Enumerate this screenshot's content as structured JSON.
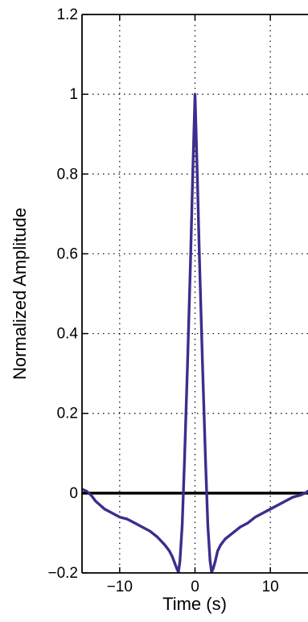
{
  "chart_data": {
    "type": "line",
    "title": "",
    "xlabel": "Time (s)",
    "ylabel": "Normalized Amplitude",
    "xlim": [
      -15,
      15
    ],
    "ylim": [
      -0.2,
      1.2
    ],
    "x_ticks": [
      -10,
      0,
      10
    ],
    "x_tick_labels": [
      "−10",
      "0",
      "10"
    ],
    "y_ticks": [
      -0.2,
      0,
      0.2,
      0.4,
      0.6,
      0.8,
      1,
      1.2
    ],
    "y_tick_labels": [
      "−0.2",
      "0",
      "0.2",
      "0.4",
      "0.6",
      "0.8",
      "1",
      "1.2"
    ],
    "grid": true,
    "legend": "none",
    "zero_line": 0,
    "series": [
      {
        "color": "#3b2e8c",
        "x": [
          -15,
          -14.4,
          -13.8,
          -13.2,
          -12.6,
          -12,
          -11,
          -10,
          -9,
          -8,
          -7,
          -6,
          -5,
          -4,
          -3.4,
          -3,
          -2.7,
          -2.4,
          -2.2,
          -2,
          -1.7,
          -1.4,
          -1,
          -0.6,
          -0.3,
          -0.15,
          0,
          0.15,
          0.3,
          0.6,
          1,
          1.4,
          1.7,
          2,
          2.2,
          2.4,
          2.7,
          3,
          3.4,
          4,
          5,
          6,
          7,
          8,
          9,
          10,
          11,
          12,
          13,
          14,
          14.6,
          15
        ],
        "y": [
          0.01,
          0.005,
          -0.005,
          -0.02,
          -0.03,
          -0.04,
          -0.05,
          -0.06,
          -0.065,
          -0.075,
          -0.085,
          -0.095,
          -0.11,
          -0.13,
          -0.145,
          -0.16,
          -0.175,
          -0.19,
          -0.198,
          -0.17,
          -0.08,
          0.08,
          0.32,
          0.58,
          0.8,
          0.9,
          1.0,
          0.9,
          0.8,
          0.58,
          0.32,
          0.08,
          -0.08,
          -0.17,
          -0.198,
          -0.19,
          -0.17,
          -0.145,
          -0.13,
          -0.115,
          -0.1,
          -0.085,
          -0.075,
          -0.06,
          -0.05,
          -0.04,
          -0.03,
          -0.02,
          -0.01,
          -0.005,
          0.0,
          0.005
        ]
      }
    ]
  }
}
